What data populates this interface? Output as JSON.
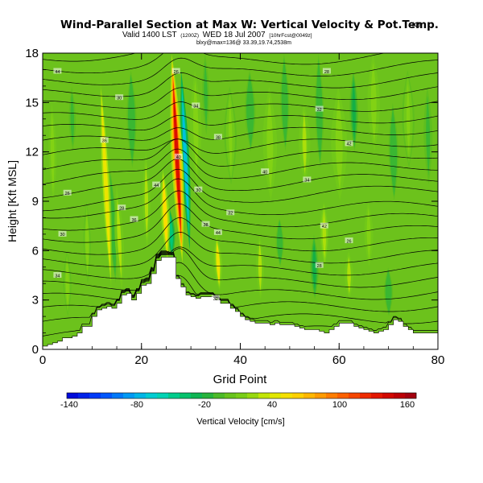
{
  "chart_data": {
    "type": "contour",
    "title": "Wind-Parallel Section at Max W: Vertical Velocity & Pot.Temp.",
    "title_mark": "(C)",
    "subtitle_main": "Valid 1400 LST",
    "subtitle_small_a": "(1200Z)",
    "subtitle_date": "WED 18 Jul 2007",
    "subtitle_small_b": "[10hrFcst@0049z]",
    "subtitle_line2": "blxy@max=136@ 33.39,19.74,2538m",
    "xlabel": "Grid Point",
    "ylabel": "Height [Kft MSL]",
    "xlim": [
      0,
      80
    ],
    "ylim": [
      0,
      18
    ],
    "x_ticks": [
      "0",
      "20",
      "40",
      "60",
      "80"
    ],
    "y_ticks": [
      "0",
      "3",
      "6",
      "9",
      "12",
      "15",
      "18"
    ],
    "colorbar": {
      "label": "Vertical Velocity [cm/s]",
      "min": -140,
      "max": 170,
      "step": 10,
      "tick_labels": [
        "-140",
        "-80",
        "-20",
        "40",
        "100",
        "160"
      ]
    },
    "max_vertical_velocity_cm_s": 136,
    "terrain_kft": [
      0.2,
      0.3,
      0.4,
      0.5,
      0.7,
      0.7,
      0.8,
      1.0,
      1.4,
      1.4,
      2.0,
      2.4,
      2.5,
      2.6,
      2.5,
      2.8,
      3.3,
      3.4,
      3.0,
      3.4,
      3.9,
      4.0,
      4.6,
      5.4,
      5.6,
      5.6,
      5.6,
      4.3,
      3.8,
      3.3,
      3.2,
      3.1,
      3.2,
      3.2,
      3.2,
      3.0,
      2.8,
      2.8,
      2.5,
      2.3,
      2.0,
      1.8,
      1.7,
      1.6,
      1.6,
      1.6,
      1.5,
      1.6,
      1.5,
      1.5,
      1.5,
      1.4,
      1.3,
      1.2,
      1.2,
      1.2,
      1.1,
      1.0,
      1.2,
      1.4,
      1.6,
      1.6,
      1.6,
      1.4,
      1.3,
      1.2,
      1.1,
      1.0,
      1.1,
      1.2,
      1.5,
      1.8,
      1.7,
      1.4,
      1.2,
      1.0,
      1.0,
      1.0,
      1.0,
      1.0,
      1.0
    ],
    "updraft_cores": [
      {
        "x": 12.8,
        "y0": 3.5,
        "y1": 16.5,
        "peak_cm_s": 50
      },
      {
        "x": 15.5,
        "y0": 3.5,
        "y1": 10.0,
        "peak_cm_s": 25
      },
      {
        "x": 24.8,
        "y0": 5.3,
        "y1": 11.0,
        "peak_cm_s": 60
      },
      {
        "x": 27.2,
        "y0": 5.2,
        "y1": 18.0,
        "peak_cm_s": 136
      },
      {
        "x": 35.5,
        "y0": 3.5,
        "y1": 7.0,
        "peak_cm_s": 45
      }
    ],
    "downdraft_cores": [
      {
        "x": 28.9,
        "y0": 6.0,
        "y1": 17.0,
        "peak_cm_s": -70
      },
      {
        "x": 26.0,
        "y0": 5.6,
        "y1": 8.5,
        "peak_cm_s": -45
      },
      {
        "x": 14.2,
        "y0": 4.0,
        "y1": 11.0,
        "peak_cm_s": -15
      }
    ],
    "isentrope_labels": [
      "44",
      "30",
      "26",
      "34",
      "28",
      "32",
      "36",
      "38",
      "40",
      "42"
    ]
  }
}
